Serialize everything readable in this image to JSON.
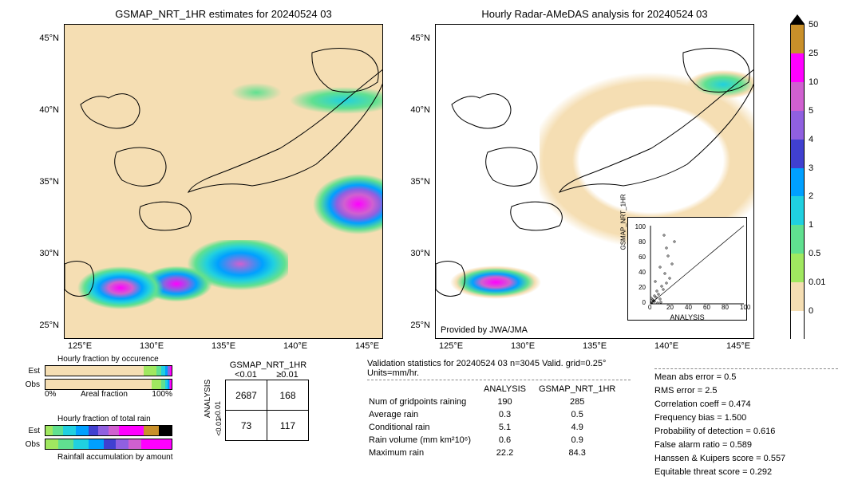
{
  "maps": {
    "left": {
      "title": "GSMAP_NRT_1HR estimates for 20240524 03",
      "bg_color": "#f5deb3",
      "xticks": [
        "125°E",
        "130°E",
        "135°E",
        "140°E",
        "145°E"
      ],
      "yticks": [
        "25°N",
        "30°N",
        "35°N",
        "40°N",
        "45°N"
      ]
    },
    "right": {
      "title": "Hourly Radar-AMeDAS analysis for 20240524 03",
      "bg_color": "#ffffff",
      "attribution": "Provided by JWA/JMA",
      "xticks": [
        "125°E",
        "130°E",
        "135°E",
        "140°E",
        "145°E"
      ],
      "yticks": [
        "25°N",
        "30°N",
        "35°N",
        "40°N",
        "45°N"
      ]
    }
  },
  "colorbar": {
    "levels": [
      {
        "value": "50",
        "color": "#c9902a"
      },
      {
        "value": "25",
        "color": "#ff00ff"
      },
      {
        "value": "10",
        "color": "#d060d0"
      },
      {
        "value": "5",
        "color": "#9060e0"
      },
      {
        "value": "4",
        "color": "#4040d0"
      },
      {
        "value": "3",
        "color": "#00a0ff"
      },
      {
        "value": "2",
        "color": "#20d0e0"
      },
      {
        "value": "1",
        "color": "#60e090"
      },
      {
        "value": "0.5",
        "color": "#a0e860"
      },
      {
        "value": "0.01",
        "color": "#f5deb3"
      },
      {
        "value": "0",
        "color": "#ffffff"
      }
    ],
    "top_arrow_color": "#000000"
  },
  "scatter_inset": {
    "xlabel": "ANALYSIS",
    "ylabel": "GSMAP_NRT_1HR",
    "ticks": [
      "0",
      "20",
      "40",
      "60",
      "80",
      "100"
    ]
  },
  "occurrence": {
    "title": "Hourly fraction by occurence",
    "row1_label": "Est",
    "row2_label": "Obs",
    "axis_left": "0%",
    "axis_mid": "Areal fraction",
    "axis_right": "100%",
    "est_segs": [
      {
        "color": "#f5deb3",
        "pct": 78
      },
      {
        "color": "#a0e860",
        "pct": 10
      },
      {
        "color": "#60e090",
        "pct": 4
      },
      {
        "color": "#20d0e0",
        "pct": 3
      },
      {
        "color": "#00a0ff",
        "pct": 2
      },
      {
        "color": "#9060e0",
        "pct": 2
      },
      {
        "color": "#ff00ff",
        "pct": 1
      }
    ],
    "obs_segs": [
      {
        "color": "#f5deb3",
        "pct": 84
      },
      {
        "color": "#a0e860",
        "pct": 8
      },
      {
        "color": "#60e090",
        "pct": 3
      },
      {
        "color": "#20d0e0",
        "pct": 2
      },
      {
        "color": "#00a0ff",
        "pct": 1
      },
      {
        "color": "#9060e0",
        "pct": 1
      },
      {
        "color": "#ff00ff",
        "pct": 1
      }
    ]
  },
  "totalrain": {
    "title": "Hourly fraction of total rain",
    "row1_label": "Est",
    "row2_label": "Obs",
    "footer": "Rainfall accumulation by amount",
    "est_segs": [
      {
        "color": "#a0e860",
        "pct": 6
      },
      {
        "color": "#60e090",
        "pct": 8
      },
      {
        "color": "#20d0e0",
        "pct": 10
      },
      {
        "color": "#00a0ff",
        "pct": 10
      },
      {
        "color": "#4040d0",
        "pct": 8
      },
      {
        "color": "#9060e0",
        "pct": 8
      },
      {
        "color": "#d060d0",
        "pct": 8
      },
      {
        "color": "#ff00ff",
        "pct": 20
      },
      {
        "color": "#c9902a",
        "pct": 12
      },
      {
        "color": "#000000",
        "pct": 10
      }
    ],
    "obs_segs": [
      {
        "color": "#a0e860",
        "pct": 10
      },
      {
        "color": "#60e090",
        "pct": 12
      },
      {
        "color": "#20d0e0",
        "pct": 12
      },
      {
        "color": "#00a0ff",
        "pct": 12
      },
      {
        "color": "#4040d0",
        "pct": 10
      },
      {
        "color": "#9060e0",
        "pct": 10
      },
      {
        "color": "#d060d0",
        "pct": 10
      },
      {
        "color": "#ff00ff",
        "pct": 24
      }
    ]
  },
  "contingency": {
    "col_header": "GSMAP_NRT_1HR",
    "col1": "<0.01",
    "col2": "≥0.01",
    "row_header": "ANALYSIS",
    "row1": "≥0.01",
    "row2": "<0.01",
    "cells": [
      [
        "2687",
        "168"
      ],
      [
        "73",
        "117"
      ]
    ]
  },
  "validation": {
    "title": "Validation statistics for 20240524 03  n=3045 Valid. grid=0.25° Units=mm/hr.",
    "col1": "ANALYSIS",
    "col2": "GSMAP_NRT_1HR",
    "rows": [
      {
        "label": "Num of gridpoints raining",
        "v1": "190",
        "v2": "285"
      },
      {
        "label": "Average rain",
        "v1": "0.3",
        "v2": "0.5"
      },
      {
        "label": "Conditional rain",
        "v1": "5.1",
        "v2": "4.9"
      },
      {
        "label": "Rain volume (mm km²10⁶)",
        "v1": "0.6",
        "v2": "0.9"
      },
      {
        "label": "Maximum rain",
        "v1": "22.2",
        "v2": "84.3"
      }
    ]
  },
  "stats": [
    {
      "label": "Mean abs error =",
      "value": "0.5"
    },
    {
      "label": "RMS error =",
      "value": "2.5"
    },
    {
      "label": "Correlation coeff =",
      "value": "0.474"
    },
    {
      "label": "Frequency bias =",
      "value": "1.500"
    },
    {
      "label": "Probability of detection =",
      "value": "0.616"
    },
    {
      "label": "False alarm ratio =",
      "value": "0.589"
    },
    {
      "label": "Hanssen & Kuipers score =",
      "value": "0.557"
    },
    {
      "label": "Equitable threat score =",
      "value": "0.292"
    }
  ]
}
